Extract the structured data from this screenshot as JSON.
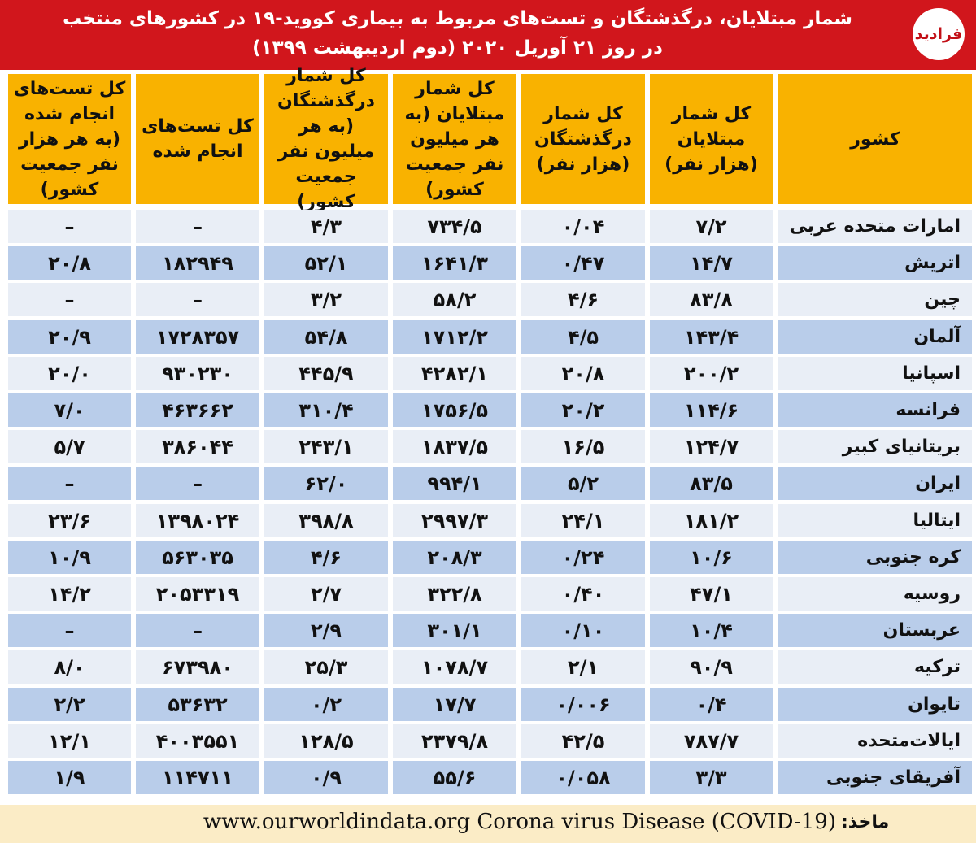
{
  "header": {
    "title_line1": "شمار مبتلایان، درگذشتگان و تست‌های مربوط به بیماری کووید-۱۹ در کشورهای منتخب",
    "title_line2": "در روز ۲۱ آوریل ۲۰۲۰ (دوم اردیبهشت ۱۳۹۹)",
    "logo_text": "فرادید",
    "colors": {
      "header_bg": "#d1161c",
      "header_text": "#ffffff",
      "column_header_bg": "#f9b200",
      "row_light": "#e9eef6",
      "row_blue": "#b9cdea",
      "footer_bg": "#fbecc6"
    }
  },
  "chart_data": {
    "type": "table",
    "columns": [
      "کشور",
      "کل شمار مبتلایان (هزار نفر)",
      "کل شمار درگذشتگان (هزار نفر)",
      "کل شمار مبتلایان (به هر میلیون نفر جمعیت کشور)",
      "کل شمار درگذشتگان (به هر میلیون نفر جمعیت کشور)",
      "کل تست‌های انجام شده",
      "کل تست‌های انجام شده (به هر هزار نفر جمعیت کشور)"
    ],
    "rows": [
      [
        "امارات متحده عربی",
        "۷/۲",
        "۰/۰۴",
        "۷۳۴/۵",
        "۴/۳",
        "–",
        "–"
      ],
      [
        "اتریش",
        "۱۴/۷",
        "۰/۴۷",
        "۱۶۴۱/۳",
        "۵۲/۱",
        "۱۸۲۹۴۹",
        "۲۰/۸"
      ],
      [
        "چین",
        "۸۳/۸",
        "۴/۶",
        "۵۸/۲",
        "۳/۲",
        "–",
        "–"
      ],
      [
        "آلمان",
        "۱۴۳/۴",
        "۴/۵",
        "۱۷۱۲/۲",
        "۵۴/۸",
        "۱۷۲۸۳۵۷",
        "۲۰/۹"
      ],
      [
        "اسپانیا",
        "۲۰۰/۲",
        "۲۰/۸",
        "۴۲۸۲/۱",
        "۴۴۵/۹",
        "۹۳۰۲۳۰",
        "۲۰/۰"
      ],
      [
        "فرانسه",
        "۱۱۴/۶",
        "۲۰/۲",
        "۱۷۵۶/۵",
        "۳۱۰/۴",
        "۴۶۳۶۶۲",
        "۷/۰"
      ],
      [
        "بریتانیای کبیر",
        "۱۲۴/۷",
        "۱۶/۵",
        "۱۸۳۷/۵",
        "۲۴۳/۱",
        "۳۸۶۰۴۴",
        "۵/۷"
      ],
      [
        "ایران",
        "۸۳/۵",
        "۵/۲",
        "۹۹۴/۱",
        "۶۲/۰",
        "–",
        "–"
      ],
      [
        "ایتالیا",
        "۱۸۱/۲",
        "۲۴/۱",
        "۲۹۹۷/۳",
        "۳۹۸/۸",
        "۱۳۹۸۰۲۴",
        "۲۳/۶"
      ],
      [
        "کره جنوبی",
        "۱۰/۶",
        "۰/۲۴",
        "۲۰۸/۳",
        "۴/۶",
        "۵۶۳۰۳۵",
        "۱۰/۹"
      ],
      [
        "روسیه",
        "۴۷/۱",
        "۰/۴۰",
        "۳۲۲/۸",
        "۲/۷",
        "۲۰۵۳۳۱۹",
        "۱۴/۲"
      ],
      [
        "عربستان",
        "۱۰/۴",
        "۰/۱۰",
        "۳۰۱/۱",
        "۲/۹",
        "–",
        "–"
      ],
      [
        "ترکیه",
        "۹۰/۹",
        "۲/۱",
        "۱۰۷۸/۷",
        "۲۵/۳",
        "۶۷۳۹۸۰",
        "۸/۰"
      ],
      [
        "تایوان",
        "۰/۴",
        "۰/۰۰۶",
        "۱۷/۷",
        "۰/۲",
        "۵۳۶۳۲",
        "۲/۲"
      ],
      [
        "ایالات‌متحده",
        "۷۸۷/۷",
        "۴۲/۵",
        "۲۳۷۹/۸",
        "۱۲۸/۵",
        "۴۰۰۳۵۵۱",
        "۱۲/۱"
      ],
      [
        "آفریقای جنوبی",
        "۳/۳",
        "۰/۰۵۸",
        "۵۵/۶",
        "۰/۹",
        "۱۱۴۷۱۱",
        "۱/۹"
      ]
    ]
  },
  "footer": {
    "source_label": "ماخذ:",
    "source_text": "www.ourworldindata.org Corona virus Disease (COVID-19)"
  }
}
